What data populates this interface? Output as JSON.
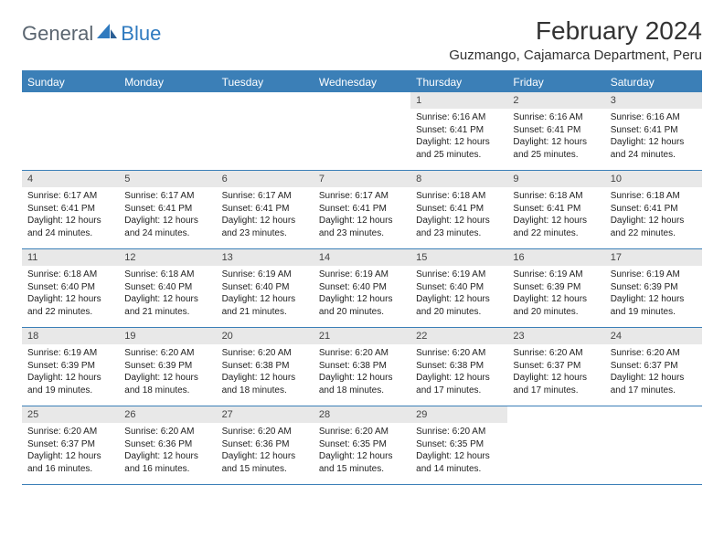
{
  "logo": {
    "general": "General",
    "blue": "Blue"
  },
  "title": "February 2024",
  "location": "Guzmango, Cajamarca Department, Peru",
  "colors": {
    "header_bg": "#3b7fb7",
    "header_text": "#ffffff",
    "daynum_bg": "#e8e8e8",
    "border": "#3b7fb7",
    "logo_gray": "#5a6570",
    "logo_blue": "#2f7abf"
  },
  "days_of_week": [
    "Sunday",
    "Monday",
    "Tuesday",
    "Wednesday",
    "Thursday",
    "Friday",
    "Saturday"
  ],
  "leading_blanks": 4,
  "cells": [
    {
      "n": "1",
      "sr": "Sunrise: 6:16 AM",
      "ss": "Sunset: 6:41 PM",
      "dl": "Daylight: 12 hours and 25 minutes."
    },
    {
      "n": "2",
      "sr": "Sunrise: 6:16 AM",
      "ss": "Sunset: 6:41 PM",
      "dl": "Daylight: 12 hours and 25 minutes."
    },
    {
      "n": "3",
      "sr": "Sunrise: 6:16 AM",
      "ss": "Sunset: 6:41 PM",
      "dl": "Daylight: 12 hours and 24 minutes."
    },
    {
      "n": "4",
      "sr": "Sunrise: 6:17 AM",
      "ss": "Sunset: 6:41 PM",
      "dl": "Daylight: 12 hours and 24 minutes."
    },
    {
      "n": "5",
      "sr": "Sunrise: 6:17 AM",
      "ss": "Sunset: 6:41 PM",
      "dl": "Daylight: 12 hours and 24 minutes."
    },
    {
      "n": "6",
      "sr": "Sunrise: 6:17 AM",
      "ss": "Sunset: 6:41 PM",
      "dl": "Daylight: 12 hours and 23 minutes."
    },
    {
      "n": "7",
      "sr": "Sunrise: 6:17 AM",
      "ss": "Sunset: 6:41 PM",
      "dl": "Daylight: 12 hours and 23 minutes."
    },
    {
      "n": "8",
      "sr": "Sunrise: 6:18 AM",
      "ss": "Sunset: 6:41 PM",
      "dl": "Daylight: 12 hours and 23 minutes."
    },
    {
      "n": "9",
      "sr": "Sunrise: 6:18 AM",
      "ss": "Sunset: 6:41 PM",
      "dl": "Daylight: 12 hours and 22 minutes."
    },
    {
      "n": "10",
      "sr": "Sunrise: 6:18 AM",
      "ss": "Sunset: 6:41 PM",
      "dl": "Daylight: 12 hours and 22 minutes."
    },
    {
      "n": "11",
      "sr": "Sunrise: 6:18 AM",
      "ss": "Sunset: 6:40 PM",
      "dl": "Daylight: 12 hours and 22 minutes."
    },
    {
      "n": "12",
      "sr": "Sunrise: 6:18 AM",
      "ss": "Sunset: 6:40 PM",
      "dl": "Daylight: 12 hours and 21 minutes."
    },
    {
      "n": "13",
      "sr": "Sunrise: 6:19 AM",
      "ss": "Sunset: 6:40 PM",
      "dl": "Daylight: 12 hours and 21 minutes."
    },
    {
      "n": "14",
      "sr": "Sunrise: 6:19 AM",
      "ss": "Sunset: 6:40 PM",
      "dl": "Daylight: 12 hours and 20 minutes."
    },
    {
      "n": "15",
      "sr": "Sunrise: 6:19 AM",
      "ss": "Sunset: 6:40 PM",
      "dl": "Daylight: 12 hours and 20 minutes."
    },
    {
      "n": "16",
      "sr": "Sunrise: 6:19 AM",
      "ss": "Sunset: 6:39 PM",
      "dl": "Daylight: 12 hours and 20 minutes."
    },
    {
      "n": "17",
      "sr": "Sunrise: 6:19 AM",
      "ss": "Sunset: 6:39 PM",
      "dl": "Daylight: 12 hours and 19 minutes."
    },
    {
      "n": "18",
      "sr": "Sunrise: 6:19 AM",
      "ss": "Sunset: 6:39 PM",
      "dl": "Daylight: 12 hours and 19 minutes."
    },
    {
      "n": "19",
      "sr": "Sunrise: 6:20 AM",
      "ss": "Sunset: 6:39 PM",
      "dl": "Daylight: 12 hours and 18 minutes."
    },
    {
      "n": "20",
      "sr": "Sunrise: 6:20 AM",
      "ss": "Sunset: 6:38 PM",
      "dl": "Daylight: 12 hours and 18 minutes."
    },
    {
      "n": "21",
      "sr": "Sunrise: 6:20 AM",
      "ss": "Sunset: 6:38 PM",
      "dl": "Daylight: 12 hours and 18 minutes."
    },
    {
      "n": "22",
      "sr": "Sunrise: 6:20 AM",
      "ss": "Sunset: 6:38 PM",
      "dl": "Daylight: 12 hours and 17 minutes."
    },
    {
      "n": "23",
      "sr": "Sunrise: 6:20 AM",
      "ss": "Sunset: 6:37 PM",
      "dl": "Daylight: 12 hours and 17 minutes."
    },
    {
      "n": "24",
      "sr": "Sunrise: 6:20 AM",
      "ss": "Sunset: 6:37 PM",
      "dl": "Daylight: 12 hours and 17 minutes."
    },
    {
      "n": "25",
      "sr": "Sunrise: 6:20 AM",
      "ss": "Sunset: 6:37 PM",
      "dl": "Daylight: 12 hours and 16 minutes."
    },
    {
      "n": "26",
      "sr": "Sunrise: 6:20 AM",
      "ss": "Sunset: 6:36 PM",
      "dl": "Daylight: 12 hours and 16 minutes."
    },
    {
      "n": "27",
      "sr": "Sunrise: 6:20 AM",
      "ss": "Sunset: 6:36 PM",
      "dl": "Daylight: 12 hours and 15 minutes."
    },
    {
      "n": "28",
      "sr": "Sunrise: 6:20 AM",
      "ss": "Sunset: 6:35 PM",
      "dl": "Daylight: 12 hours and 15 minutes."
    },
    {
      "n": "29",
      "sr": "Sunrise: 6:20 AM",
      "ss": "Sunset: 6:35 PM",
      "dl": "Daylight: 12 hours and 14 minutes."
    }
  ],
  "trailing_blanks": 2
}
